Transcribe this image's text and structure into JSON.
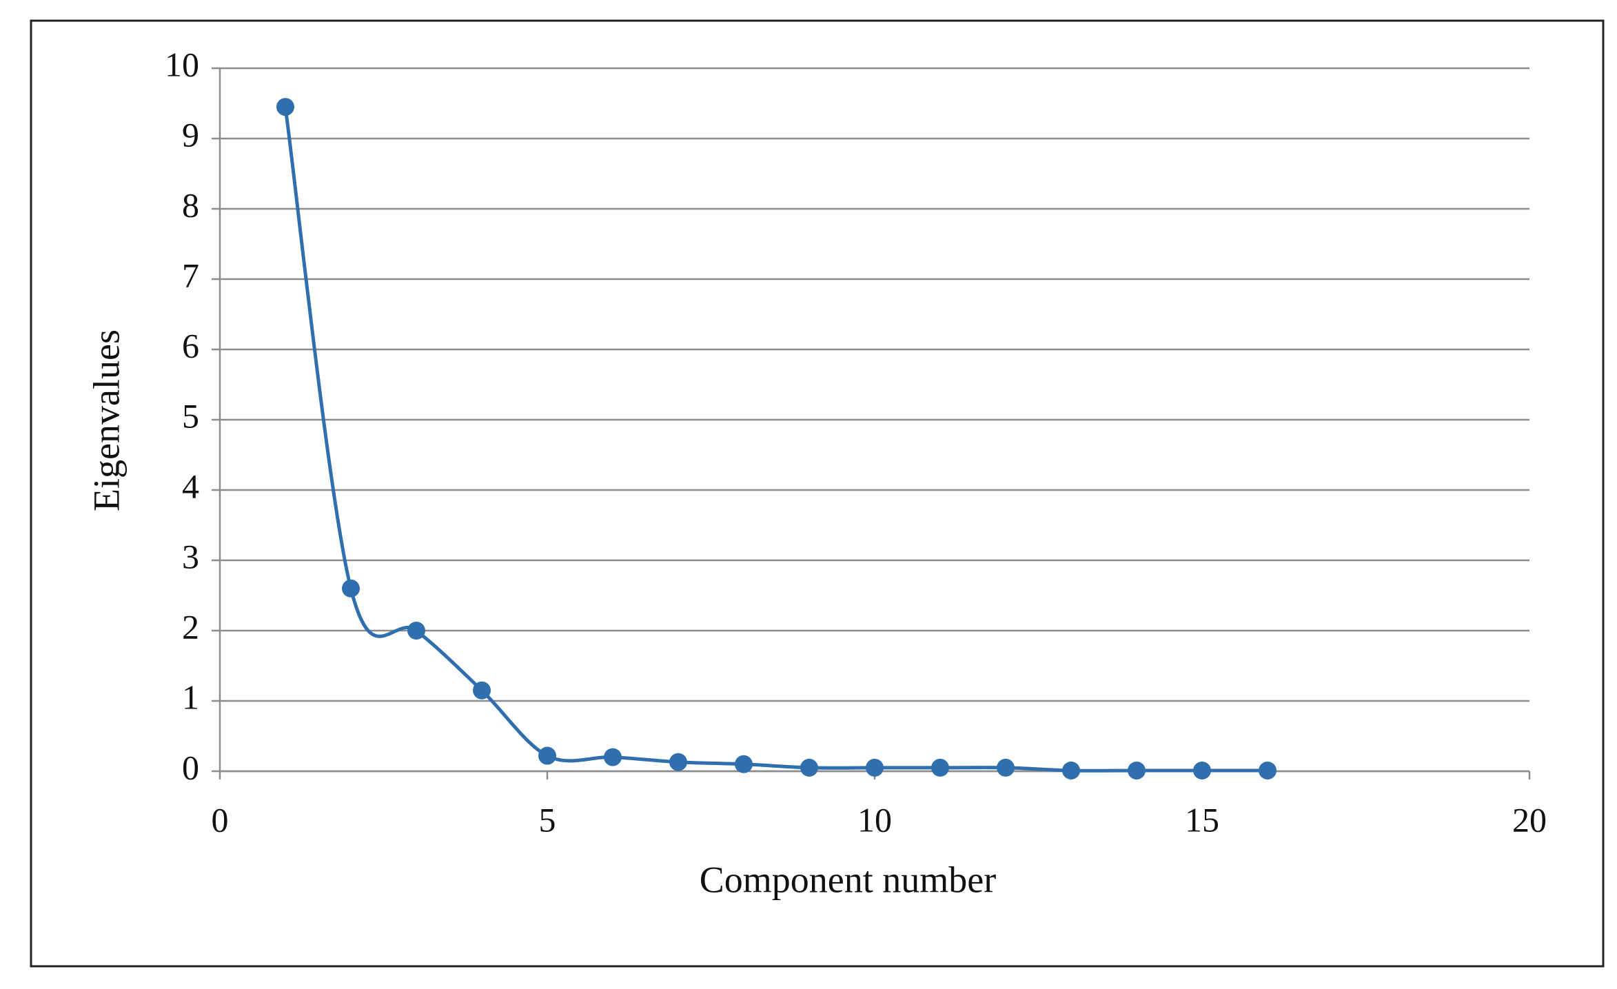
{
  "chart_data": {
    "type": "scatter",
    "x_label": "Component number",
    "y_label": "Eigenvalues",
    "x": [
      1,
      2,
      3,
      4,
      5,
      6,
      7,
      8,
      9,
      10,
      11,
      12,
      13,
      14,
      15,
      16
    ],
    "values": [
      9.45,
      2.6,
      2.0,
      1.15,
      0.22,
      0.2,
      0.13,
      0.1,
      0.05,
      0.05,
      0.05,
      0.05,
      0.01,
      0.01,
      0.01,
      0.01
    ],
    "color": "#2f6fae",
    "xlim": [
      0,
      20
    ],
    "ylim": [
      0,
      10
    ],
    "xticks": [
      0,
      5,
      10,
      15,
      20
    ],
    "yticks": [
      0,
      1,
      2,
      3,
      4,
      5,
      6,
      7,
      8,
      9,
      10
    ],
    "grid": true,
    "smooth": true
  }
}
